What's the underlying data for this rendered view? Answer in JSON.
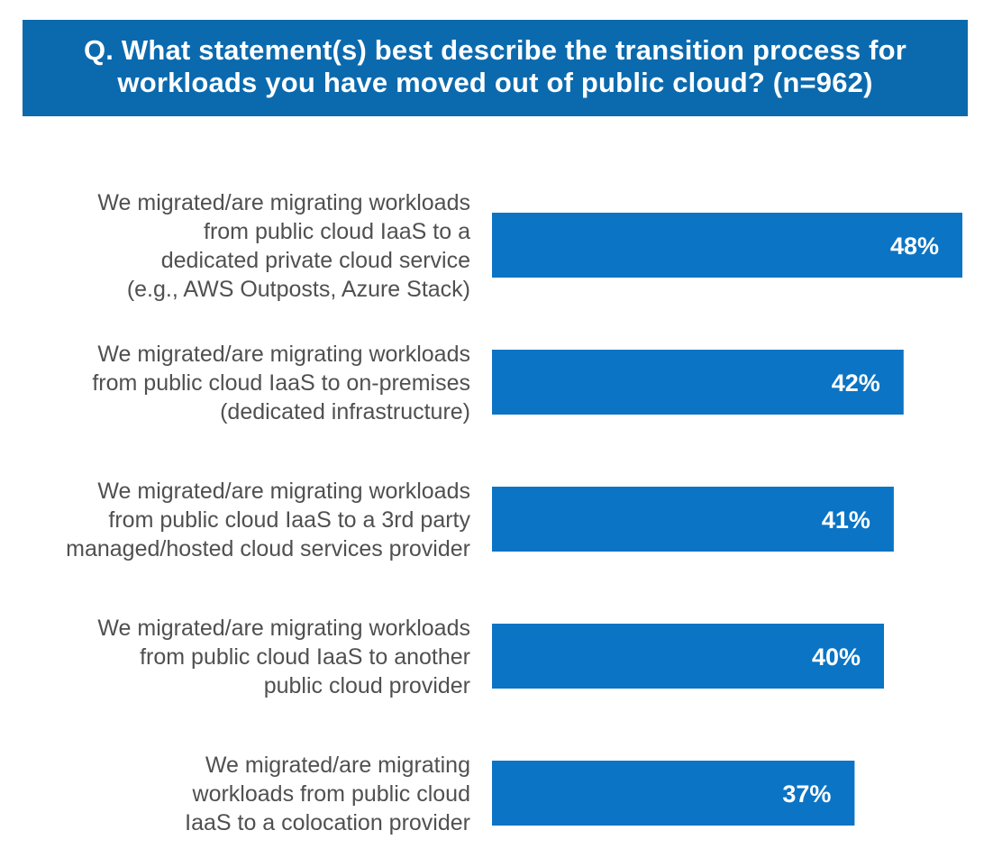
{
  "title": {
    "line1": "Q. What statement(s) best describe the transition process for",
    "line2": "workloads you have moved out of public cloud? (n=962)"
  },
  "colors": {
    "banner": "#0b6aae",
    "bar": "#0b74c4",
    "label_text": "#505050",
    "value_text": "#ffffff"
  },
  "chart_data": {
    "type": "bar",
    "orientation": "horizontal",
    "grid": false,
    "legend": "none",
    "xlim": [
      0,
      48
    ],
    "categories": [
      [
        "We migrated/are migrating workloads",
        "from public cloud IaaS to a",
        "dedicated private cloud service",
        "(e.g., AWS Outposts, Azure Stack)"
      ],
      [
        "We migrated/are migrating workloads",
        "from public cloud IaaS to on-premises",
        "(dedicated infrastructure)"
      ],
      [
        "We migrated/are migrating workloads",
        "from public cloud IaaS to a 3rd party",
        "managed/hosted cloud services provider"
      ],
      [
        "We migrated/are migrating workloads",
        "from public cloud IaaS to another",
        "public  cloud provider"
      ],
      [
        "We migrated/are migrating",
        "workloads from public cloud",
        "IaaS to a colocation provider"
      ]
    ],
    "values": [
      48,
      42,
      41,
      40,
      37
    ],
    "value_labels": [
      "48%",
      "42%",
      "41%",
      "40%",
      "37%"
    ]
  }
}
